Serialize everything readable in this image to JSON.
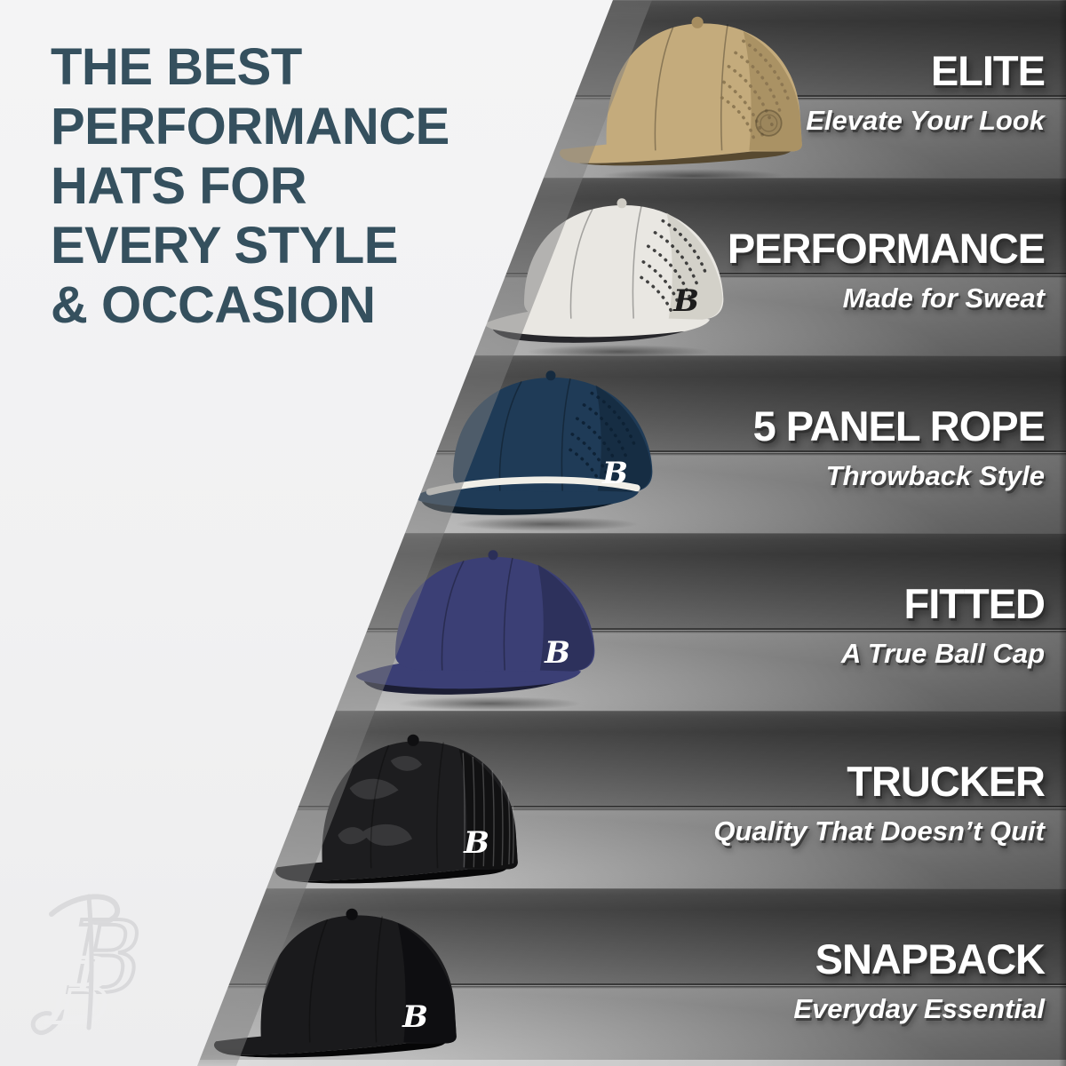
{
  "page": {
    "background_white": "#f1f1f2",
    "accent": "#35505e",
    "row_text_color": "#ffffff",
    "backdrop_grays": {
      "band_top": "#404040",
      "band_mid": "#6e6e6e",
      "floor_light": "#d4d4d4",
      "band_right_dark": "#333333"
    }
  },
  "headline": {
    "lines": [
      "THE BEST",
      "PERFORMANCE",
      "HATS FOR",
      "EVERY STYLE",
      "& OCCASION"
    ]
  },
  "brand": {
    "watermark_icon": "bb-script-monogram-icon"
  },
  "rows": [
    {
      "title": "ELITE",
      "tagline": "Elevate Your Look",
      "hat": {
        "icon": "elite-flat-bill-hat",
        "silhouette": "flat",
        "perforated": true,
        "mesh": false,
        "camo": false,
        "rope": false,
        "badge": "patch",
        "logo_char": "",
        "colors": {
          "base": "#c4ab7c",
          "shade": "#a68d60",
          "dots": "#8a7450",
          "underbrim": "#574930",
          "logo": "#b79d6e",
          "rope": ""
        }
      }
    },
    {
      "title": "PERFORMANCE",
      "tagline": "Made for Sweat",
      "hat": {
        "icon": "performance-curved-bill-hat",
        "silhouette": "curved",
        "perforated": true,
        "mesh": false,
        "camo": false,
        "rope": false,
        "badge": "B",
        "logo_char": "B",
        "colors": {
          "base": "#e9e7e2",
          "shade": "#cfccc4",
          "dots": "#2f2f2f",
          "underbrim": "#26262a",
          "logo": "#1d1d1d",
          "rope": ""
        }
      }
    },
    {
      "title": "5 PANEL ROPE",
      "tagline": "Throwback Style",
      "hat": {
        "icon": "five-panel-rope-hat",
        "silhouette": "curved",
        "perforated": true,
        "mesh": false,
        "camo": false,
        "rope": true,
        "badge": "B",
        "logo_char": "B",
        "colors": {
          "base": "#1f3b57",
          "shade": "#152b40",
          "dots": "#0c2033",
          "underbrim": "#0d1a26",
          "logo": "#ffffff",
          "rope": "#f1efe8"
        }
      }
    },
    {
      "title": "FITTED",
      "tagline": "A True Ball Cap",
      "hat": {
        "icon": "fitted-curved-bill-hat",
        "silhouette": "curved",
        "perforated": false,
        "mesh": false,
        "camo": false,
        "rope": false,
        "badge": "B",
        "logo_char": "B",
        "colors": {
          "base": "#3b3f75",
          "shade": "#2b2f58",
          "dots": "",
          "underbrim": "#1b1d33",
          "logo": "#ffffff",
          "rope": ""
        }
      }
    },
    {
      "title": "TRUCKER",
      "tagline": "Quality That Doesn’t Quit",
      "hat": {
        "icon": "trucker-mesh-hat",
        "silhouette": "flat",
        "perforated": false,
        "mesh": true,
        "camo": true,
        "rope": false,
        "badge": "B",
        "logo_char": "B",
        "colors": {
          "base": "#1d1d1f",
          "shade": "#0f0f11",
          "dots": "",
          "underbrim": "#070708",
          "logo": "#ffffff",
          "rope": ""
        }
      }
    },
    {
      "title": "SNAPBACK",
      "tagline": "Everyday Essential",
      "hat": {
        "icon": "snapback-flat-bill-hat",
        "silhouette": "flat",
        "perforated": false,
        "mesh": false,
        "camo": false,
        "rope": false,
        "badge": "B",
        "logo_char": "B",
        "colors": {
          "base": "#1a1a1c",
          "shade": "#0d0d0f",
          "dots": "",
          "underbrim": "#060607",
          "logo": "#ffffff",
          "rope": ""
        }
      }
    }
  ]
}
